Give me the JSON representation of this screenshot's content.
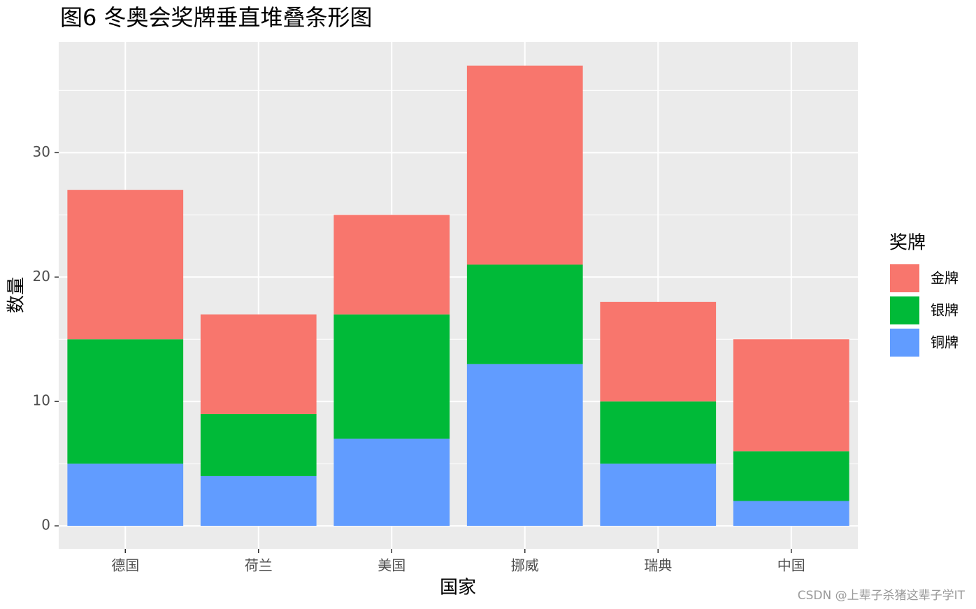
{
  "chart_data": {
    "type": "stacked_bar",
    "title": "图6 冬奥会奖牌垂直堆叠条形图",
    "x_label": "国家",
    "y_label": "数量",
    "legend_title": "奖牌",
    "categories": [
      "德国",
      "荷兰",
      "美国",
      "挪威",
      "瑞典",
      "中国"
    ],
    "series": [
      {
        "name": "金牌",
        "color": "#f8766d",
        "values": [
          12,
          8,
          8,
          16,
          8,
          9
        ]
      },
      {
        "name": "银牌",
        "color": "#00ba38",
        "values": [
          10,
          5,
          10,
          8,
          5,
          4
        ]
      },
      {
        "name": "铜牌",
        "color": "#619cff",
        "values": [
          5,
          4,
          7,
          13,
          5,
          2
        ]
      }
    ],
    "ylim": [
      -1.85,
      38.9
    ],
    "yticks": [
      0,
      10,
      20,
      30
    ],
    "minor_yticks": [
      5,
      15,
      25,
      35
    ],
    "grid": true,
    "legend_position": "right",
    "watermark": "CSDN @上辈子杀猪这辈子学IT"
  }
}
